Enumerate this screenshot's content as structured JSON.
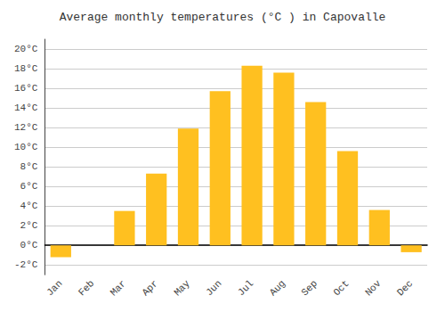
{
  "chart_data": {
    "type": "bar",
    "title": "Average monthly temperatures (°C ) in Capovalle",
    "categories": [
      "Jan",
      "Feb",
      "Mar",
      "Apr",
      "May",
      "Jun",
      "Jul",
      "Aug",
      "Sep",
      "Oct",
      "Nov",
      "Dec"
    ],
    "values": [
      -1.2,
      0.0,
      3.5,
      7.3,
      11.9,
      15.7,
      18.3,
      17.6,
      14.6,
      9.6,
      3.6,
      -0.7
    ],
    "color": "#FFC020",
    "ylim": [
      -3,
      21
    ],
    "yticks": [
      {
        "value": -2,
        "label": "-2°C"
      },
      {
        "value": 0,
        "label": "0°C"
      },
      {
        "value": 2,
        "label": "2°C"
      },
      {
        "value": 4,
        "label": "4°C"
      },
      {
        "value": 6,
        "label": "6°C"
      },
      {
        "value": 8,
        "label": "8°C"
      },
      {
        "value": 10,
        "label": "10°C"
      },
      {
        "value": 12,
        "label": "12°C"
      },
      {
        "value": 14,
        "label": "14°C"
      },
      {
        "value": 16,
        "label": "16°C"
      },
      {
        "value": 18,
        "label": "18°C"
      },
      {
        "value": 20,
        "label": "20°C"
      }
    ],
    "grid": true
  }
}
